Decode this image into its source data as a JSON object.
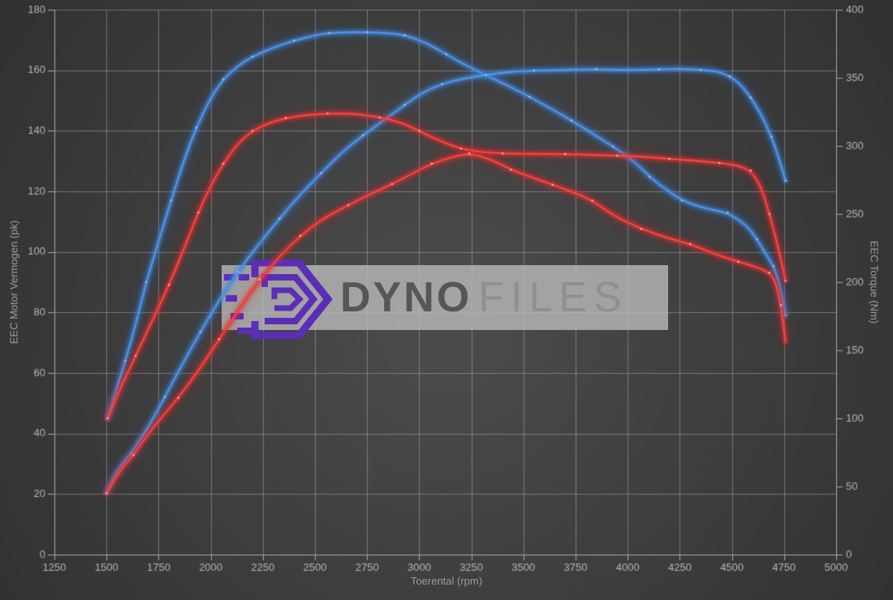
{
  "watermark": {
    "brand_bold": "DYNO",
    "brand_light": "FILES"
  },
  "style": {
    "bg_center": "#4a4a4a",
    "bg_edge": "#2c2c2c",
    "grid_color": "rgba(210,210,210,0.38)",
    "axis_line_color": "#a8a8a8",
    "tick_label_color": "#b4b4b4",
    "axis_title_color": "#9c9c9c",
    "watermark_box_color": "rgba(186,186,186,0.80)",
    "logo_purple": "#5b2eb8",
    "brand_bold_color": "#565656",
    "brand_light_color": "#8f8f8f"
  },
  "chart_data": {
    "type": "line",
    "title": "",
    "grid": "on",
    "legend": "none",
    "x_axis": {
      "label": "Toerental (rpm)",
      "min": 1250,
      "max": 5000,
      "tick_step": 250,
      "ticks": [
        1250,
        1500,
        1750,
        2000,
        2250,
        2500,
        2750,
        3000,
        3250,
        3500,
        3750,
        4000,
        4250,
        4500,
        4750,
        5000
      ]
    },
    "y_axis_left": {
      "label": "EEC Motor Vermogen (pk)",
      "min": 0,
      "max": 180,
      "tick_step": 20,
      "ticks": [
        0,
        20,
        40,
        60,
        80,
        100,
        120,
        140,
        160,
        180
      ]
    },
    "y_axis_right": {
      "label": "EEC Torque (Nm)",
      "min": 0,
      "max": 400,
      "tick_step": 50,
      "ticks": [
        0,
        50,
        100,
        150,
        200,
        250,
        300,
        350,
        400
      ]
    },
    "series": [
      {
        "name": "vermogen-run-1",
        "axis": "left",
        "unit": "pk",
        "color": "#3f87e0",
        "dot_color": "#9cc6f5",
        "points": [
          [
            1505,
            45
          ],
          [
            1545,
            54
          ],
          [
            1590,
            64
          ],
          [
            1640,
            76
          ],
          [
            1690,
            90
          ],
          [
            1750,
            103.5
          ],
          [
            1810,
            117
          ],
          [
            1870,
            130
          ],
          [
            1930,
            141
          ],
          [
            2000,
            151
          ],
          [
            2060,
            157
          ],
          [
            2130,
            161.5
          ],
          [
            2200,
            164.5
          ],
          [
            2300,
            167.5
          ],
          [
            2400,
            169.8
          ],
          [
            2510,
            171.7
          ],
          [
            2570,
            172.3
          ],
          [
            2650,
            172.6
          ],
          [
            2750,
            172.6
          ],
          [
            2850,
            172.3
          ],
          [
            2930,
            171.6
          ],
          [
            3030,
            169.2
          ],
          [
            3130,
            165.3
          ],
          [
            3200,
            162.5
          ],
          [
            3320,
            158.3
          ],
          [
            3430,
            154.8
          ],
          [
            3530,
            151.2
          ],
          [
            3630,
            147.4
          ],
          [
            3730,
            143.4
          ],
          [
            3830,
            139.2
          ],
          [
            3930,
            134.8
          ],
          [
            4030,
            130
          ],
          [
            4105,
            124.8
          ],
          [
            4180,
            120.8
          ],
          [
            4260,
            117
          ],
          [
            4365,
            114.4
          ],
          [
            4480,
            113
          ],
          [
            4570,
            108.8
          ],
          [
            4620,
            104.2
          ],
          [
            4660,
            99.6
          ],
          [
            4700,
            95.3
          ],
          [
            4730,
            89
          ],
          [
            4757,
            79
          ]
        ]
      },
      {
        "name": "vermogen-run-2",
        "axis": "left",
        "unit": "pk",
        "color": "#3f87e0",
        "dot_color": "#9cc6f5",
        "points": [
          [
            1500,
            20.5
          ],
          [
            1540,
            27
          ],
          [
            1620,
            33.5
          ],
          [
            1700,
            42
          ],
          [
            1780,
            52
          ],
          [
            1860,
            62.5
          ],
          [
            1950,
            73.5
          ],
          [
            2040,
            84
          ],
          [
            2130,
            93.5
          ],
          [
            2230,
            102.5
          ],
          [
            2330,
            111
          ],
          [
            2430,
            119
          ],
          [
            2530,
            126
          ],
          [
            2630,
            133
          ],
          [
            2730,
            138.5
          ],
          [
            2830,
            143.5
          ],
          [
            2930,
            148.5
          ],
          [
            3010,
            152.5
          ],
          [
            3110,
            155.5
          ],
          [
            3210,
            157.3
          ],
          [
            3320,
            158.4
          ],
          [
            3420,
            159.4
          ],
          [
            3550,
            159.9
          ],
          [
            3700,
            160.1
          ],
          [
            3850,
            160.4
          ],
          [
            4000,
            160
          ],
          [
            4150,
            160.3
          ],
          [
            4250,
            160.5
          ],
          [
            4350,
            160.1
          ],
          [
            4430,
            159.7
          ],
          [
            4490,
            158
          ],
          [
            4540,
            155.5
          ],
          [
            4590,
            151
          ],
          [
            4640,
            145.5
          ],
          [
            4690,
            138
          ],
          [
            4725,
            131
          ],
          [
            4757,
            123.5
          ]
        ]
      },
      {
        "name": "torque-run-1",
        "axis": "right",
        "unit": "Nm",
        "color": "#e62e2e",
        "dot_color": "#ffb3a6",
        "points": [
          [
            1505,
            100
          ],
          [
            1560,
            120
          ],
          [
            1640,
            146
          ],
          [
            1720,
            172
          ],
          [
            1800,
            198
          ],
          [
            1870,
            224
          ],
          [
            1940,
            251
          ],
          [
            2000,
            271
          ],
          [
            2060,
            287
          ],
          [
            2130,
            302
          ],
          [
            2200,
            311
          ],
          [
            2280,
            317
          ],
          [
            2360,
            320.5
          ],
          [
            2450,
            322.5
          ],
          [
            2560,
            323.8
          ],
          [
            2690,
            323.8
          ],
          [
            2810,
            321
          ],
          [
            2900,
            318
          ],
          [
            3000,
            311
          ],
          [
            3100,
            303.5
          ],
          [
            3200,
            298
          ],
          [
            3280,
            295.8
          ],
          [
            3400,
            294.5
          ],
          [
            3550,
            294.2
          ],
          [
            3700,
            294
          ],
          [
            3820,
            293.5
          ],
          [
            3950,
            292.8
          ],
          [
            4060,
            292.3
          ],
          [
            4200,
            290.5
          ],
          [
            4320,
            289.3
          ],
          [
            4440,
            287.5
          ],
          [
            4520,
            286
          ],
          [
            4590,
            282
          ],
          [
            4640,
            270
          ],
          [
            4680,
            250
          ],
          [
            4720,
            227
          ],
          [
            4757,
            201
          ]
        ]
      },
      {
        "name": "torque-run-2",
        "axis": "right",
        "unit": "Nm",
        "color": "#e62e2e",
        "dot_color": "#ffb3a6",
        "points": [
          [
            1500,
            45
          ],
          [
            1555,
            60
          ],
          [
            1630,
            73
          ],
          [
            1720,
            93
          ],
          [
            1845,
            115
          ],
          [
            1950,
            137
          ],
          [
            2040,
            158
          ],
          [
            2140,
            181
          ],
          [
            2235,
            202
          ],
          [
            2330,
            219
          ],
          [
            2430,
            234
          ],
          [
            2530,
            246
          ],
          [
            2660,
            256.5
          ],
          [
            2770,
            265
          ],
          [
            2870,
            272
          ],
          [
            2970,
            280
          ],
          [
            3060,
            287
          ],
          [
            3160,
            292
          ],
          [
            3240,
            294.5
          ],
          [
            3340,
            290.5
          ],
          [
            3440,
            282.5
          ],
          [
            3540,
            277
          ],
          [
            3640,
            271.5
          ],
          [
            3740,
            266
          ],
          [
            3830,
            260
          ],
          [
            3930,
            249
          ],
          [
            4065,
            239
          ],
          [
            4210,
            231.5
          ],
          [
            4300,
            228
          ],
          [
            4410,
            221
          ],
          [
            4530,
            215
          ],
          [
            4620,
            211
          ],
          [
            4680,
            207
          ],
          [
            4710,
            200
          ],
          [
            4735,
            183
          ],
          [
            4757,
            156
          ]
        ]
      }
    ]
  }
}
